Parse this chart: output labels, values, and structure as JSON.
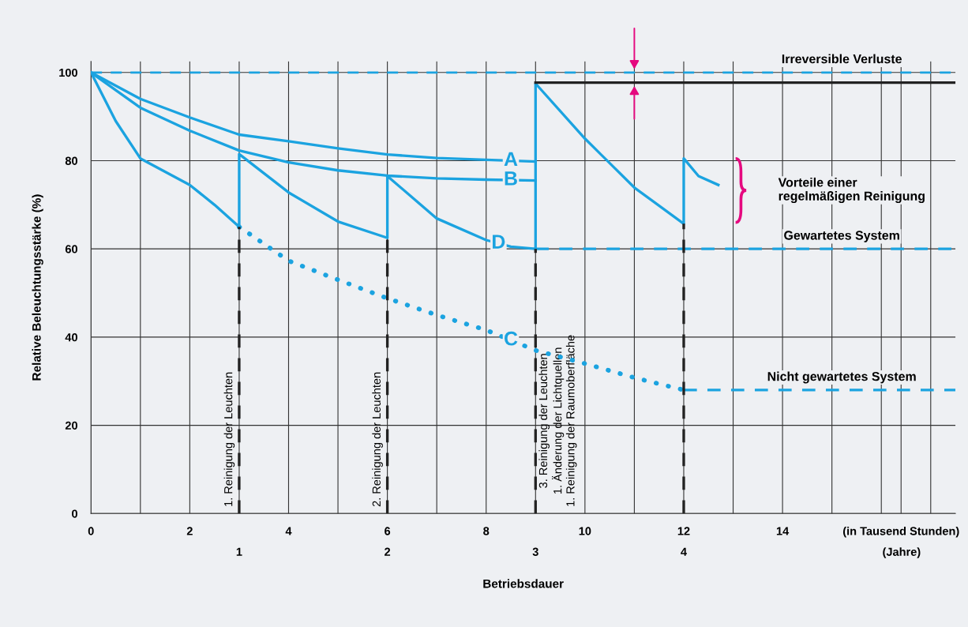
{
  "chart_data": {
    "type": "line",
    "xlabel": "Betriebsdauer",
    "ylabel": "Relative Beleuchtungsstärke (%)",
    "xlim": [
      0,
      17.5
    ],
    "ylim": [
      0,
      102.5
    ],
    "xticks": [
      0,
      {
        "value": 1,
        "label": null
      },
      2,
      {
        "value": 3,
        "label": null
      },
      4,
      {
        "value": 5,
        "label": null
      },
      6,
      {
        "value": 7,
        "label": null
      },
      8,
      {
        "value": 9,
        "label": null
      },
      10,
      {
        "value": 11,
        "label": null
      },
      12,
      {
        "value": 13,
        "label": null
      },
      14,
      {
        "value": 15,
        "label": null
      },
      {
        "value": 16,
        "label": null
      },
      {
        "value": 16.4,
        "label": "(in Tausend Stunden)"
      },
      {
        "value": 17,
        "label": null
      }
    ],
    "yticks": [
      0,
      20,
      40,
      60,
      80,
      100
    ],
    "x2lim": [
      0,
      5.8333
    ],
    "x2ticks": [
      1,
      2,
      3,
      4,
      {
        "value": 5.47,
        "label": "(Jahre)"
      }
    ],
    "grid": true,
    "marker": "none",
    "legend": false,
    "series": [
      {
        "name": "A",
        "color": "#1ba3e0",
        "line_style": "solid",
        "x": [
          0,
          1,
          2,
          3,
          4,
          5,
          6,
          7,
          8,
          9
        ],
        "values": [
          100,
          94,
          89.8,
          85.9,
          84.4,
          82.8,
          81.4,
          80.6,
          80.2,
          79.8
        ]
      },
      {
        "name": "B",
        "color": "#1ba3e0",
        "line_style": "solid",
        "x": [
          0,
          1,
          2,
          3,
          4,
          5,
          6,
          7,
          8,
          9
        ],
        "values": [
          100,
          92,
          86.8,
          82.3,
          79.6,
          77.8,
          76.6,
          76,
          75.7,
          75.5
        ]
      },
      {
        "name": "C",
        "color": "#1ba3e0",
        "line_style": "dotted",
        "x": [
          3,
          4,
          5,
          6,
          7,
          8,
          9,
          10,
          11,
          12
        ],
        "values": [
          65,
          57.3,
          53,
          48.8,
          45,
          41.6,
          37,
          34,
          30.8,
          28
        ]
      },
      {
        "name": "D",
        "color": "#1ba3e0",
        "line_style": "solid",
        "x": [
          0,
          0.5,
          1,
          2,
          2.5,
          3,
          3,
          4,
          5,
          6,
          6,
          7,
          8,
          8.5,
          9,
          9,
          10,
          11,
          12,
          12,
          12.3,
          12.7
        ],
        "values": [
          100,
          89,
          80.5,
          74.5,
          70,
          65,
          81.5,
          72.8,
          66.2,
          62.5,
          76.5,
          66.9,
          62,
          60.5,
          60,
          97.5,
          85,
          73.9,
          65.7,
          80.5,
          76.5,
          74.5
        ]
      },
      {
        "color": "#222222",
        "line_style": "solid",
        "x": [
          9,
          17.5
        ],
        "values": [
          97.7,
          97.7
        ]
      },
      {
        "color": "#1ba3e0",
        "line_style": "dashed",
        "x": [
          9,
          17.5
        ],
        "values": [
          60,
          60
        ]
      },
      {
        "color": "#1ba3e0",
        "line_style": "dashed",
        "x": [
          12,
          17.5
        ],
        "values": [
          28,
          28
        ]
      },
      {
        "color": "#222222",
        "line_style": "dashed",
        "x": [
          3,
          3
        ],
        "values": [
          0,
          65
        ]
      },
      {
        "color": "#222222",
        "line_style": "dashed",
        "x": [
          6,
          6
        ],
        "values": [
          0,
          62.5
        ]
      },
      {
        "color": "#222222",
        "line_style": "dashed",
        "x": [
          9,
          9
        ],
        "values": [
          0,
          60
        ]
      },
      {
        "color": "#222222",
        "line_style": "dashed",
        "x": [
          12,
          12
        ],
        "values": [
          0,
          65.7
        ]
      }
    ],
    "ref_lines": [
      {
        "axis": "y",
        "value": 100,
        "color": "#1ba3e0",
        "line_style": "dashed"
      }
    ],
    "annotations": [
      {
        "text": "Irreversible Verluste",
        "x": 15.2,
        "y": 100
      },
      {
        "text": "Gewartetes System",
        "x": 15.2,
        "y": 60
      },
      {
        "text": "Nicht gewartetes System",
        "x": 15.2,
        "y": 28
      },
      "Vorteile einer\nregelmäßigen Reinigung",
      {
        "text": "1. Reinigung der Leuchten",
        "x": 3,
        "y": 0
      },
      {
        "text": "2. Reinigung der Leuchten",
        "x": 6,
        "y": 0
      },
      {
        "text": "3. Reinigung der Leuchten\n1. Änderung der Lichtquellen\n1. Reinigung der Raumoberfläche",
        "x": 9,
        "y": 0
      }
    ]
  }
}
